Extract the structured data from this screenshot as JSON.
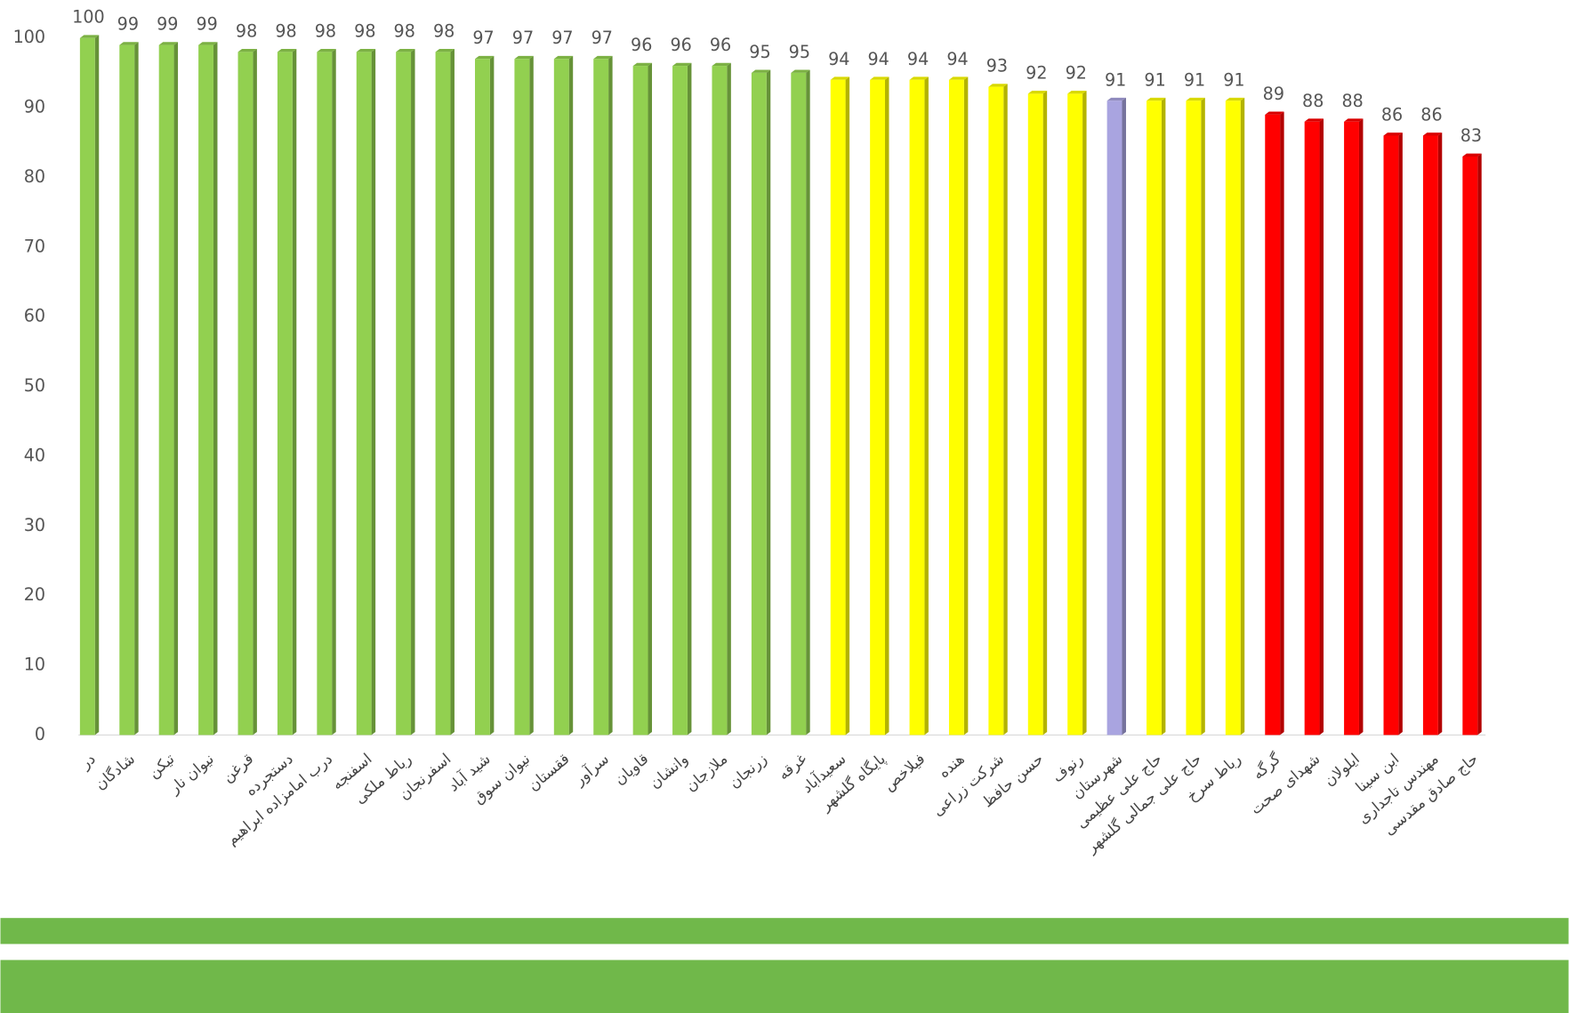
{
  "chart_data": {
    "type": "bar",
    "categories": [
      "در",
      "شادگان",
      "تیکن",
      "نیوان نار",
      "قرغن",
      "دستجرده",
      "درب امامزاده ابراهیم",
      "اسفنجه",
      "رباط ملکی",
      "اسفرنجان",
      "شید آباد",
      "نیوان سوق",
      "ققستان",
      "سرآور",
      "قاویان",
      "وانشان",
      "ملازجان",
      "زرنجان",
      "غرقه",
      "سعیدآباد",
      "پایگاه گلشهر",
      "فیلاخص",
      "هنده",
      "شرکت زراعی",
      "حسن حافظ",
      "رنوف",
      "شهرستان",
      "حاج علی عظیمی",
      "حاج علی جمالی گلشهر",
      "رباط سرخ",
      "گرگه",
      "شهدای صحت",
      "ایلولان",
      "ابن سینا",
      "مهندس تاجداری",
      "حاج صادق مقدسی"
    ],
    "values": [
      100,
      99,
      99,
      99,
      98,
      98,
      98,
      98,
      98,
      98,
      97,
      97,
      97,
      97,
      96,
      96,
      96,
      95,
      95,
      94,
      94,
      94,
      94,
      93,
      92,
      92,
      91,
      91,
      91,
      91,
      89,
      88,
      88,
      86,
      86,
      83
    ],
    "colors": [
      "#92d050",
      "#92d050",
      "#92d050",
      "#92d050",
      "#92d050",
      "#92d050",
      "#92d050",
      "#92d050",
      "#92d050",
      "#92d050",
      "#92d050",
      "#92d050",
      "#92d050",
      "#92d050",
      "#92d050",
      "#92d050",
      "#92d050",
      "#92d050",
      "#92d050",
      "#ffff00",
      "#ffff00",
      "#ffff00",
      "#ffff00",
      "#ffff00",
      "#ffff00",
      "#ffff00",
      "#a9a4e0",
      "#ffff00",
      "#ffff00",
      "#ffff00",
      "#ff0000",
      "#ff0000",
      "#ff0000",
      "#ff0000",
      "#ff0000",
      "#ff0000"
    ],
    "ylim": [
      0,
      100
    ],
    "yticks": [
      0,
      10,
      20,
      30,
      40,
      50,
      60,
      70,
      80,
      90,
      100
    ],
    "grid": false
  }
}
